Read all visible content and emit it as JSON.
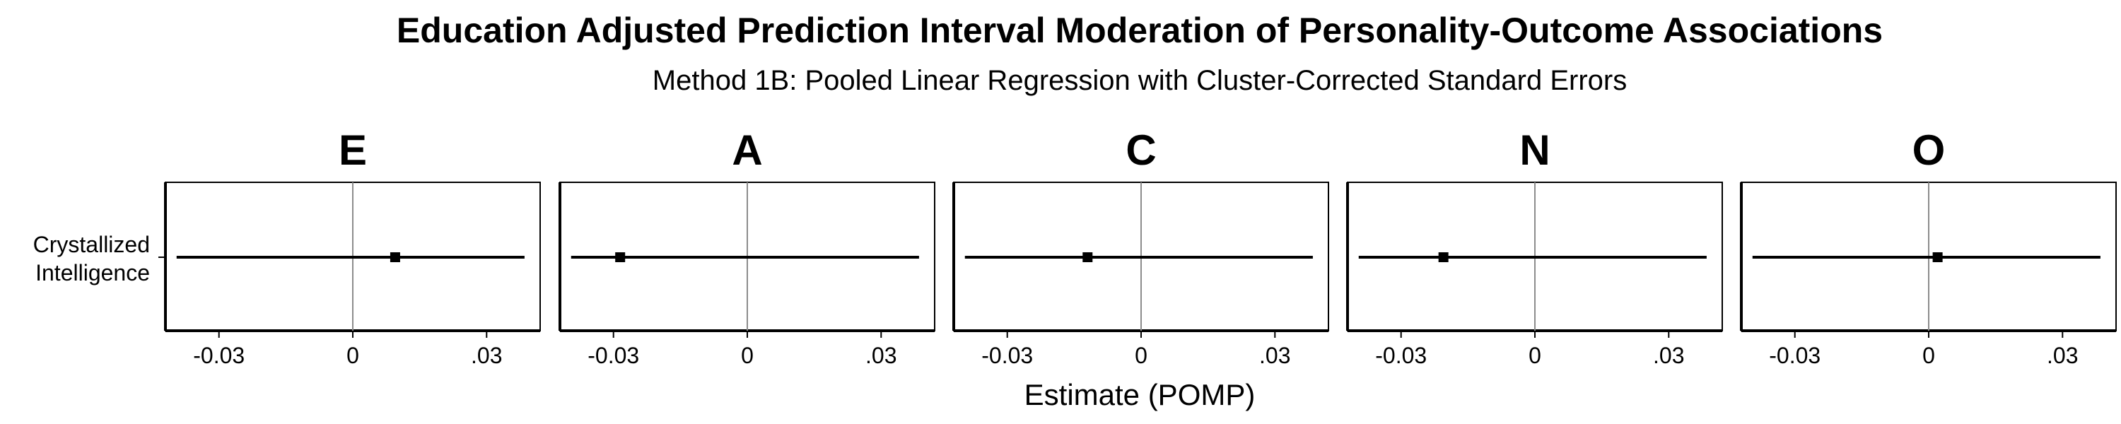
{
  "chart_data": {
    "type": "forest",
    "title": "Education Adjusted Prediction Interval Moderation of Personality-Outcome Associations",
    "subtitle": "Method 1B: Pooled Linear Regression with Cluster-Corrected Standard Errors",
    "xlabel": "Estimate (POMP)",
    "ylabel": "",
    "xlim": [
      -0.042,
      0.042
    ],
    "x_ticks": [
      -0.03,
      0,
      0.03
    ],
    "x_tick_labels": [
      "-0.03",
      "0",
      ".03"
    ],
    "reference_line": 0,
    "y_categories": [
      [
        "Crystallized",
        "Intelligence"
      ]
    ],
    "grid": false,
    "panels": [
      {
        "name": "E",
        "estimate": 0.0095,
        "lower": -0.0395,
        "upper": 0.0385
      },
      {
        "name": "A",
        "estimate": -0.0285,
        "lower": -0.0395,
        "upper": 0.0385
      },
      {
        "name": "C",
        "estimate": -0.012,
        "lower": -0.0395,
        "upper": 0.0385
      },
      {
        "name": "N",
        "estimate": -0.0205,
        "lower": -0.0395,
        "upper": 0.0385
      },
      {
        "name": "O",
        "estimate": 0.002,
        "lower": -0.0395,
        "upper": 0.0385
      }
    ]
  }
}
